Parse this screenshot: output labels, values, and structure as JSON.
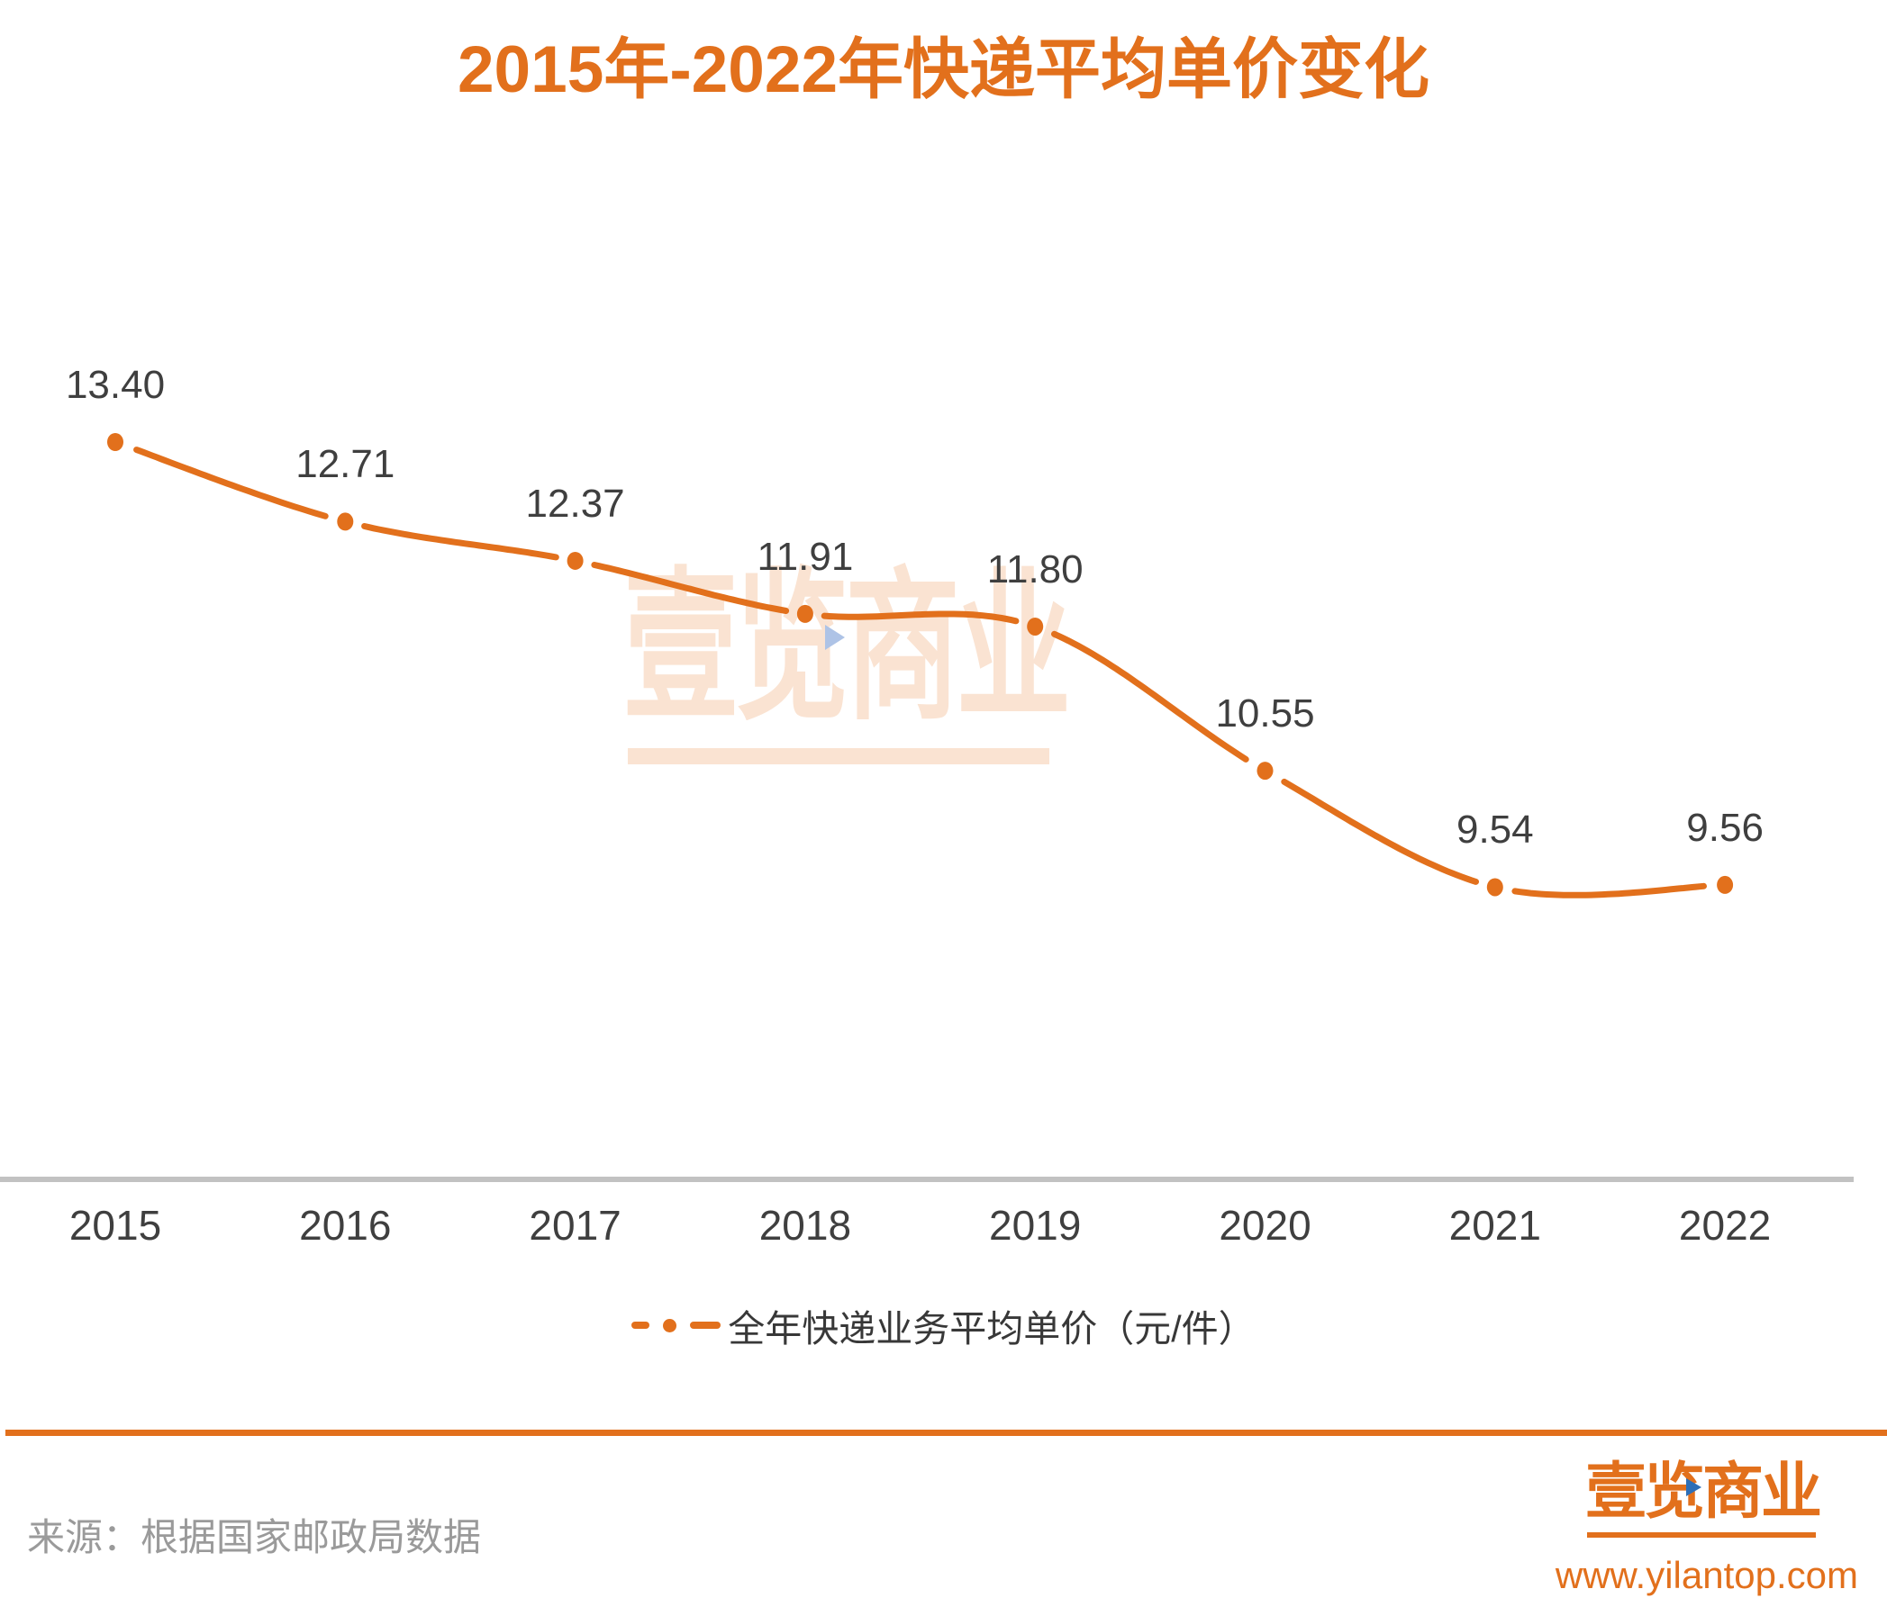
{
  "title": "2015年-2022年快递平均单价变化",
  "chart_data": {
    "type": "line",
    "title": "2015年-2022年快递平均单价变化",
    "categories": [
      "2015",
      "2016",
      "2017",
      "2018",
      "2019",
      "2020",
      "2021",
      "2022"
    ],
    "series": [
      {
        "name": "全年快递业务平均单价（元/件）",
        "values": [
          13.4,
          12.71,
          12.37,
          11.91,
          11.8,
          10.55,
          9.54,
          9.56
        ]
      }
    ],
    "data_labels": [
      "13.40",
      "12.71",
      "12.37",
      "11.91",
      "11.80",
      "10.55",
      "9.54",
      "9.56"
    ],
    "xlabel": "",
    "ylabel": "",
    "ylim": [
      9.0,
      14.0
    ],
    "grid": false,
    "legend_position": "bottom",
    "line_style": "smooth, interrupted around round markers",
    "marker": "circle"
  },
  "legend": {
    "label": "全年快递业务平均单价（元/件）"
  },
  "source": {
    "text": "来源：根据国家邮政局数据"
  },
  "watermark": {
    "text": "壹览商业"
  },
  "footer": {
    "logo_text": "壹览商业",
    "url": "www.yilantop.com"
  },
  "colors": {
    "accent_orange": "#E2701C",
    "watermark_orange": "#FAE3D2",
    "label_gray": "#3F3F3F",
    "axis_gray": "#C2C2C2",
    "source_gray": "#9A9A9A",
    "watermark_triangle_blue": "#AEC3E6",
    "logo_triangle_blue": "#2E6FB7"
  }
}
